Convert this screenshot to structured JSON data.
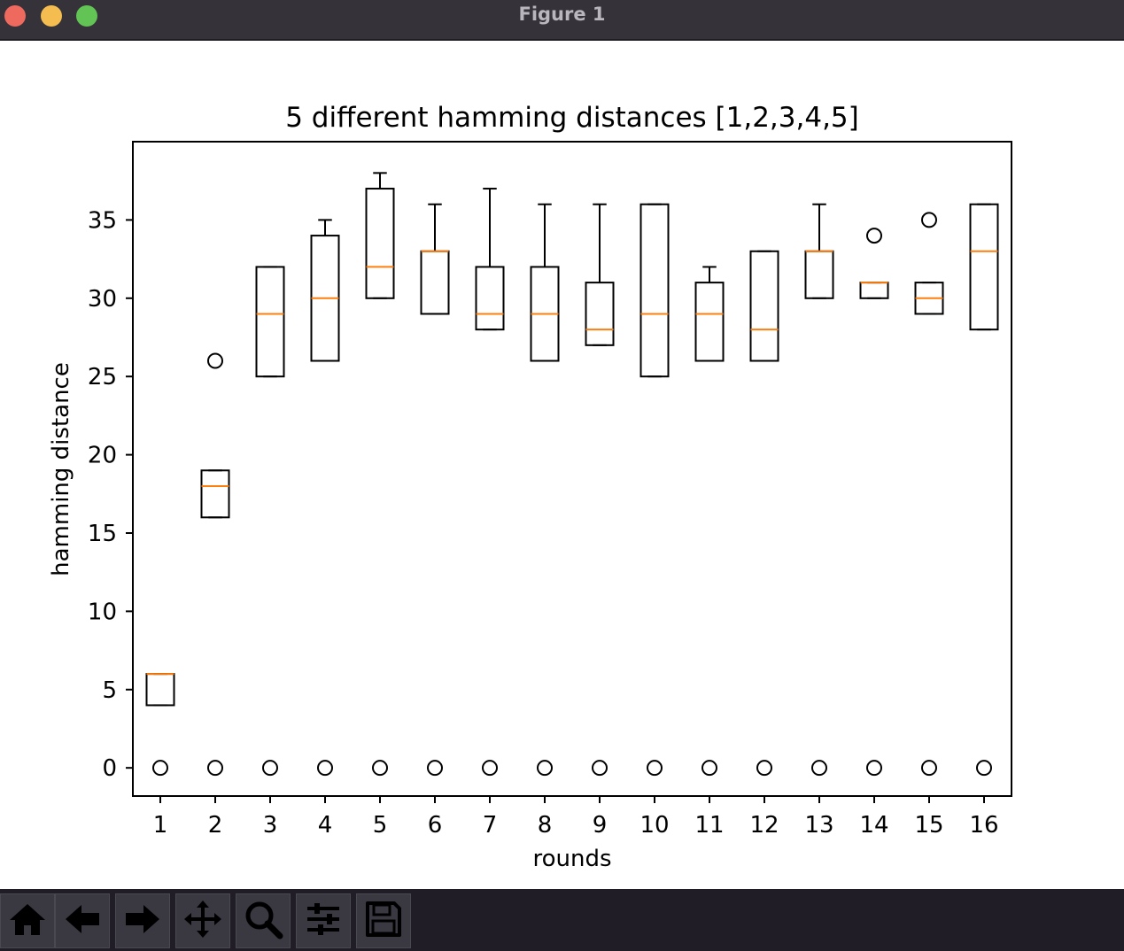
{
  "window": {
    "title": "Figure 1"
  },
  "toolbar": {
    "buttons": [
      {
        "icon": "home-icon"
      },
      {
        "icon": "back-arrow-icon"
      },
      {
        "icon": "forward-arrow-icon"
      },
      {
        "icon": "pan-move-icon"
      },
      {
        "icon": "zoom-magnifier-icon"
      },
      {
        "icon": "configure-subplots-icon"
      },
      {
        "icon": "save-floppy-icon"
      }
    ]
  },
  "chart_data": {
    "type": "boxplot",
    "title": "5 different hamming distances [1,2,3,4,5]",
    "xlabel": "rounds",
    "ylabel": "hamming distance",
    "categories": [
      "1",
      "2",
      "3",
      "4",
      "5",
      "6",
      "7",
      "8",
      "9",
      "10",
      "11",
      "12",
      "13",
      "14",
      "15",
      "16"
    ],
    "ylim": [
      -1.8,
      40
    ],
    "yticks": [
      0,
      5,
      10,
      15,
      20,
      25,
      30,
      35
    ],
    "grid": false,
    "colors": {
      "box": "#000000",
      "median": "#ff7f0e",
      "outlier": "#000000"
    },
    "boxes": [
      {
        "label": "1",
        "whisker_low": 4,
        "q1": 4,
        "median": 6,
        "q3": 6,
        "whisker_high": 6,
        "outliers": [
          0
        ]
      },
      {
        "label": "2",
        "whisker_low": 16,
        "q1": 16,
        "median": 18,
        "q3": 19,
        "whisker_high": 19,
        "outliers": [
          0,
          26
        ]
      },
      {
        "label": "3",
        "whisker_low": 25,
        "q1": 25,
        "median": 29,
        "q3": 32,
        "whisker_high": 32,
        "outliers": [
          0
        ]
      },
      {
        "label": "4",
        "whisker_low": 26,
        "q1": 26,
        "median": 30,
        "q3": 34,
        "whisker_high": 35,
        "outliers": [
          0
        ]
      },
      {
        "label": "5",
        "whisker_low": 30,
        "q1": 30,
        "median": 32,
        "q3": 37,
        "whisker_high": 38,
        "outliers": [
          0
        ]
      },
      {
        "label": "6",
        "whisker_low": 29,
        "q1": 29,
        "median": 33,
        "q3": 33,
        "whisker_high": 36,
        "outliers": [
          0
        ]
      },
      {
        "label": "7",
        "whisker_low": 28,
        "q1": 28,
        "median": 29,
        "q3": 32,
        "whisker_high": 37,
        "outliers": [
          0
        ]
      },
      {
        "label": "8",
        "whisker_low": 26,
        "q1": 26,
        "median": 29,
        "q3": 32,
        "whisker_high": 36,
        "outliers": [
          0
        ]
      },
      {
        "label": "9",
        "whisker_low": 27,
        "q1": 27,
        "median": 28,
        "q3": 31,
        "whisker_high": 36,
        "outliers": [
          0
        ]
      },
      {
        "label": "10",
        "whisker_low": 25,
        "q1": 25,
        "median": 29,
        "q3": 36,
        "whisker_high": 36,
        "outliers": [
          0
        ]
      },
      {
        "label": "11",
        "whisker_low": 26,
        "q1": 26,
        "median": 29,
        "q3": 31,
        "whisker_high": 32,
        "outliers": [
          0
        ]
      },
      {
        "label": "12",
        "whisker_low": 26,
        "q1": 26,
        "median": 28,
        "q3": 33,
        "whisker_high": 33,
        "outliers": [
          0
        ]
      },
      {
        "label": "13",
        "whisker_low": 30,
        "q1": 30,
        "median": 33,
        "q3": 33,
        "whisker_high": 36,
        "outliers": [
          0
        ]
      },
      {
        "label": "14",
        "whisker_low": 30,
        "q1": 30,
        "median": 31,
        "q3": 31,
        "whisker_high": 31,
        "outliers": [
          0,
          34
        ]
      },
      {
        "label": "15",
        "whisker_low": 29,
        "q1": 29,
        "median": 30,
        "q3": 31,
        "whisker_high": 31,
        "outliers": [
          0,
          35
        ]
      },
      {
        "label": "16",
        "whisker_low": 28,
        "q1": 28,
        "median": 33,
        "q3": 36,
        "whisker_high": 36,
        "outliers": [
          0
        ]
      }
    ]
  }
}
